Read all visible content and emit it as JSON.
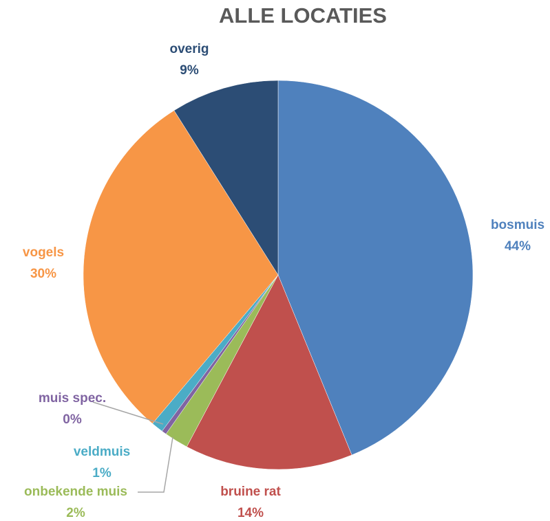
{
  "chart_data": {
    "type": "pie",
    "title": "ALLE LOCATIES",
    "categories": [
      "bosmuis",
      "bruine rat",
      "onbekende muis",
      "muis spec.",
      "veldmuis",
      "vogels",
      "overig"
    ],
    "values": [
      44,
      14,
      2,
      0.4,
      1,
      30,
      9
    ],
    "value_labels": [
      "44%",
      "14%",
      "2%",
      "0%",
      "1%",
      "30%",
      "9%"
    ],
    "colors": [
      "#4f81bd",
      "#c0504d",
      "#9bbb59",
      "#8064a2",
      "#4bacc6",
      "#f79646",
      "#2c4d75"
    ]
  }
}
